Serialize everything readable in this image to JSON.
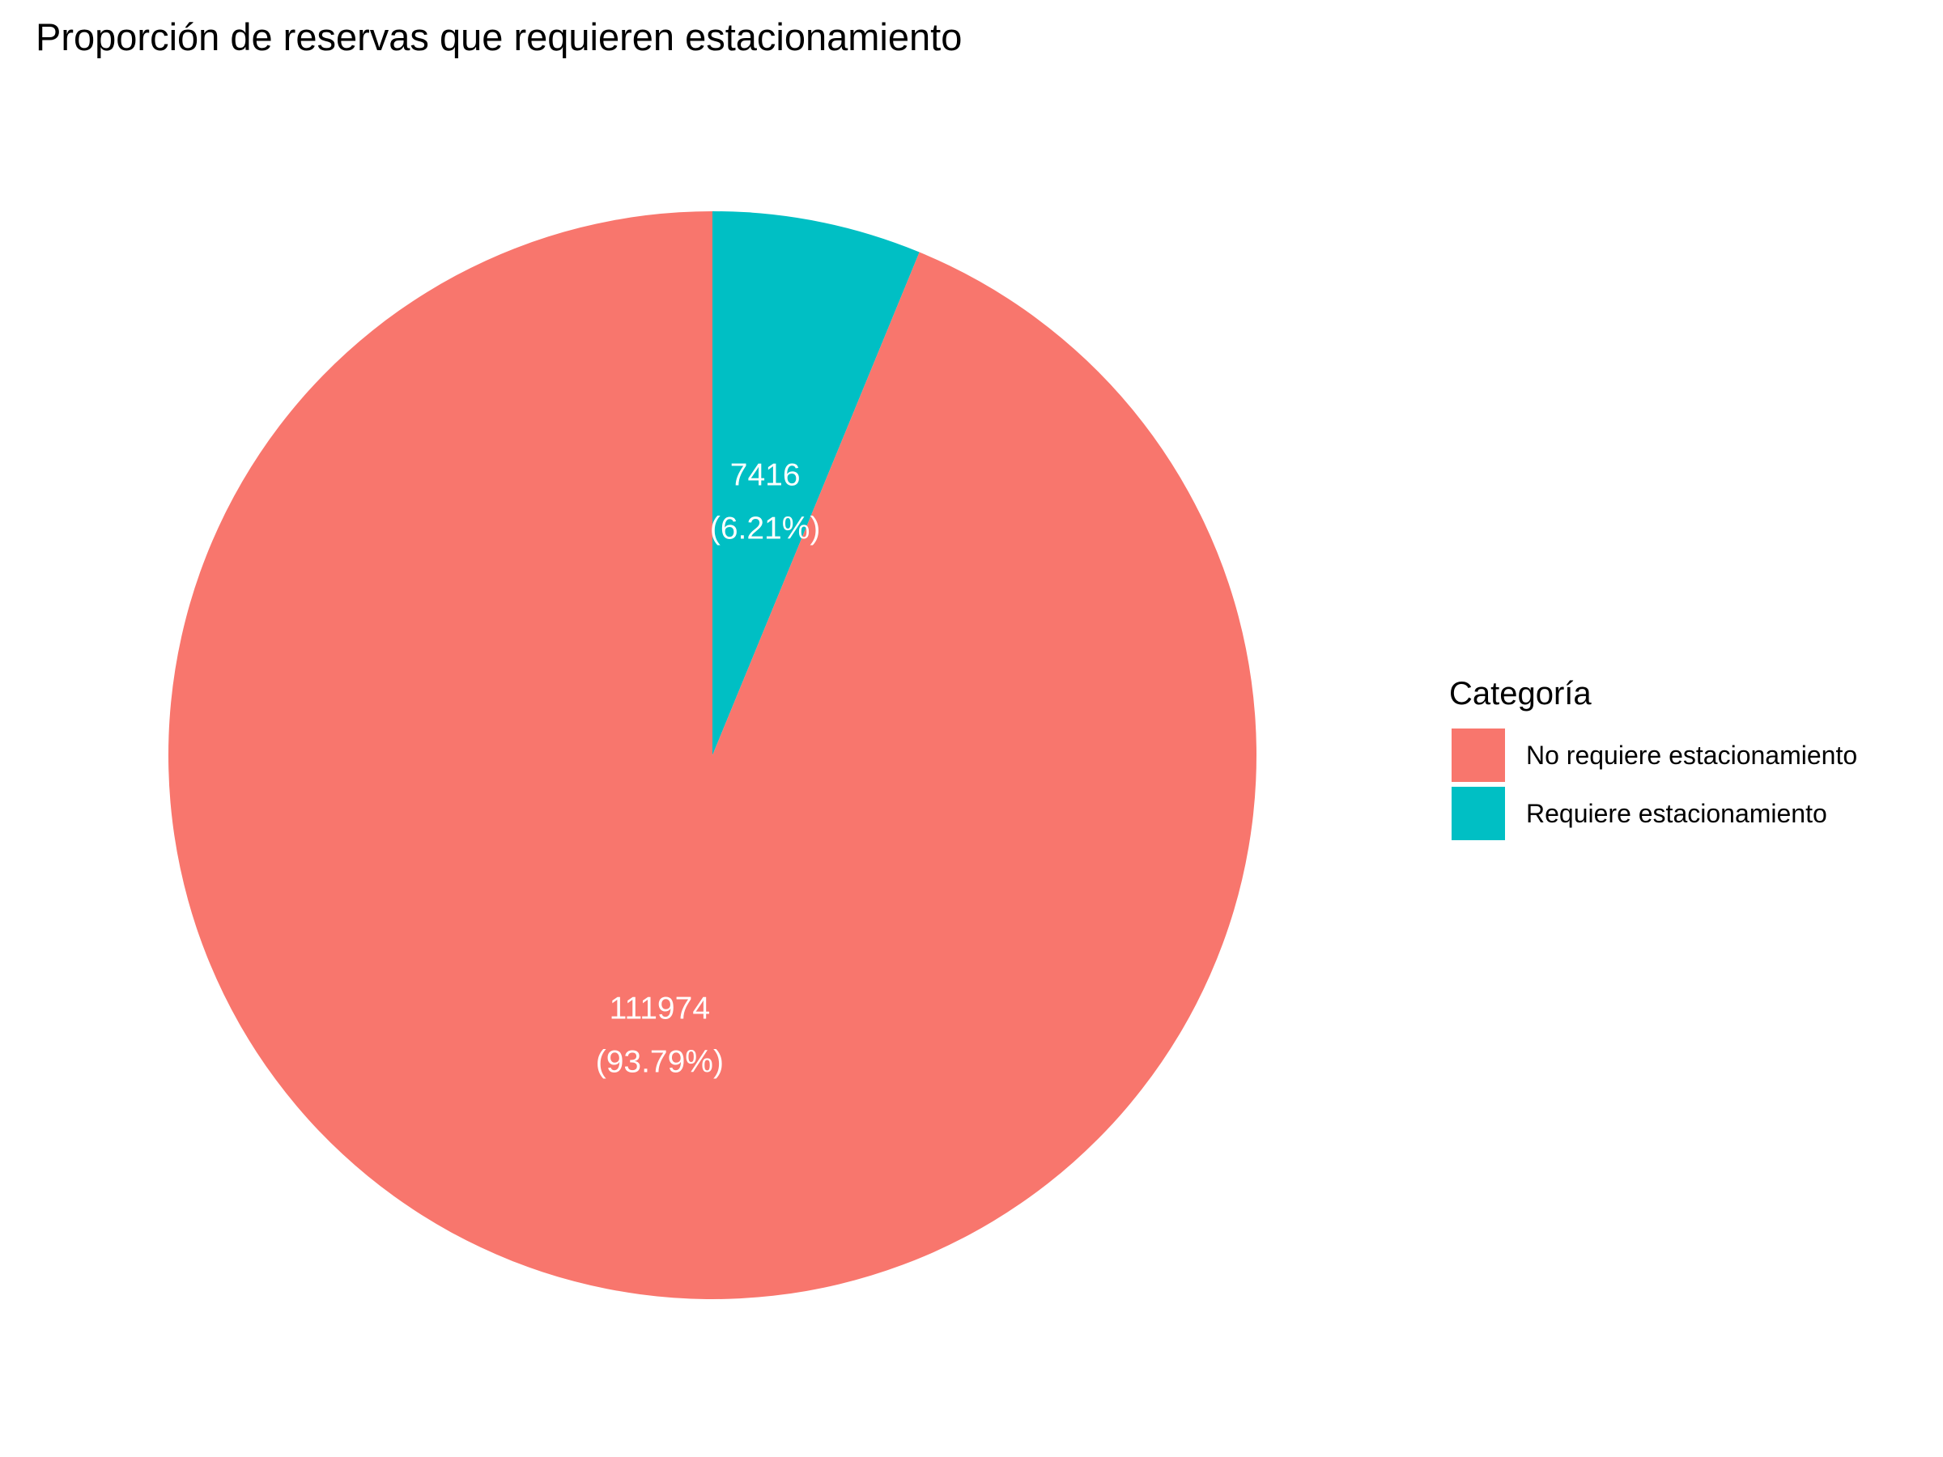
{
  "chart_data": {
    "type": "pie",
    "title": "Proporción de reservas que requieren estacionamiento",
    "legend_title": "Categoría",
    "legend_position": "right",
    "start_angle": "top",
    "direction": "clockwise",
    "slices": [
      {
        "label": "Requiere estacionamiento",
        "value": 7416,
        "percent": 6.21,
        "value_label": "7416",
        "percent_label": "(6.21%)",
        "color": "#00BFC4"
      },
      {
        "label": "No requiere estacionamiento",
        "value": 111974,
        "percent": 93.79,
        "value_label": "111974",
        "percent_label": "(93.79%)",
        "color": "#F8766D"
      }
    ],
    "legend_order": [
      "No requiere estacionamiento",
      "Requiere estacionamiento"
    ]
  }
}
